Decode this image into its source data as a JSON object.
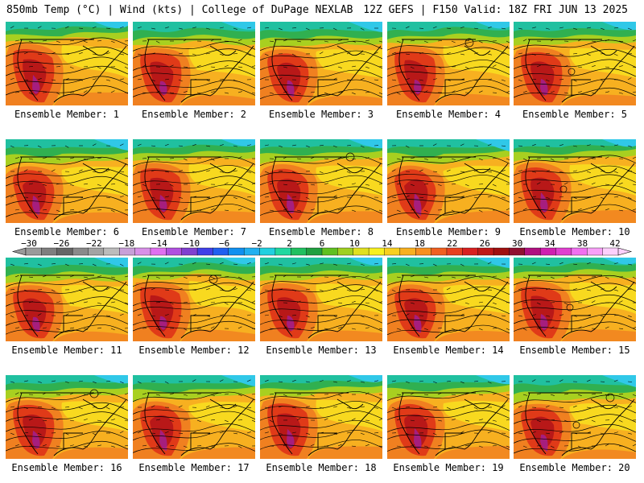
{
  "header": {
    "left": "850mb Temp (°C) | Wind (kts) | College of DuPage NEXLAB",
    "right": "12Z GEFS | F150 Valid: 18Z FRI JUN 13 2025"
  },
  "panel_label_prefix": "Ensemble Member: ",
  "members": [
    {
      "label": "Ensemble Member: 1"
    },
    {
      "label": "Ensemble Member: 2"
    },
    {
      "label": "Ensemble Member: 3"
    },
    {
      "label": "Ensemble Member: 4"
    },
    {
      "label": "Ensemble Member: 5"
    },
    {
      "label": "Ensemble Member: 6"
    },
    {
      "label": "Ensemble Member: 7"
    },
    {
      "label": "Ensemble Member: 8"
    },
    {
      "label": "Ensemble Member: 9"
    },
    {
      "label": "Ensemble Member: 10"
    },
    {
      "label": "Ensemble Member: 11"
    },
    {
      "label": "Ensemble Member: 12"
    },
    {
      "label": "Ensemble Member: 13"
    },
    {
      "label": "Ensemble Member: 14"
    },
    {
      "label": "Ensemble Member: 15"
    },
    {
      "label": "Ensemble Member: 16"
    },
    {
      "label": "Ensemble Member: 17"
    },
    {
      "label": "Ensemble Member: 18"
    },
    {
      "label": "Ensemble Member: 19"
    },
    {
      "label": "Ensemble Member: 20"
    }
  ],
  "colorbar": {
    "tick_labels": [
      "−30",
      "−26",
      "−22",
      "−18",
      "−14",
      "−10",
      "−6",
      "−2",
      "2",
      "6",
      "10",
      "14",
      "18",
      "22",
      "26",
      "30",
      "34",
      "38",
      "42"
    ],
    "colors": [
      "#9a9a9a",
      "#7f7f7f",
      "#666666",
      "#8a8a8a",
      "#a3a3a3",
      "#bcbcbc",
      "#c8a0d8",
      "#d890e8",
      "#e070f0",
      "#b050e0",
      "#8040d0",
      "#4040e8",
      "#2060f0",
      "#1090f0",
      "#20b0f0",
      "#20d0e0",
      "#20d8a0",
      "#20c060",
      "#20a040",
      "#60c020",
      "#a0d020",
      "#e0e020",
      "#f8f020",
      "#f8d020",
      "#f8b020",
      "#f89020",
      "#f06020",
      "#e84020",
      "#d82020",
      "#c01818",
      "#a01010",
      "#901030",
      "#b01080",
      "#d020b0",
      "#e040d0",
      "#f070f0",
      "#f8a0f8",
      "#fcd0fc"
    ]
  },
  "map_colors": {
    "hot_core": "#b81818",
    "hot": "#e03a18",
    "warm": "#f08020",
    "mild": "#f7b020",
    "yellow": "#f8e020",
    "lime": "#a8d020",
    "green": "#30b050",
    "teal": "#20c0a0",
    "cyan": "#30c8e8",
    "blue": "#3060e0",
    "purple": "#a020a0"
  }
}
